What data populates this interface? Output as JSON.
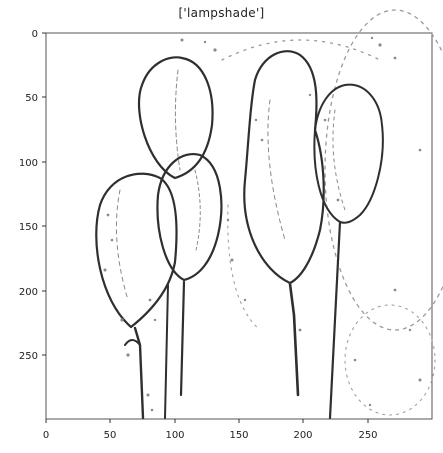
{
  "figure": {
    "title": "['lampshade']",
    "x_ticks": [
      "0",
      "50",
      "100",
      "150",
      "200",
      "250"
    ],
    "y_ticks": [
      "0",
      "50",
      "100",
      "150",
      "200",
      "250"
    ],
    "style": "edge-detection sketch of balloon-shaped lampshades"
  },
  "colors": {
    "ink": "#2f2f2f",
    "speckle": "#8a8a8a",
    "background": "#ffffff"
  }
}
